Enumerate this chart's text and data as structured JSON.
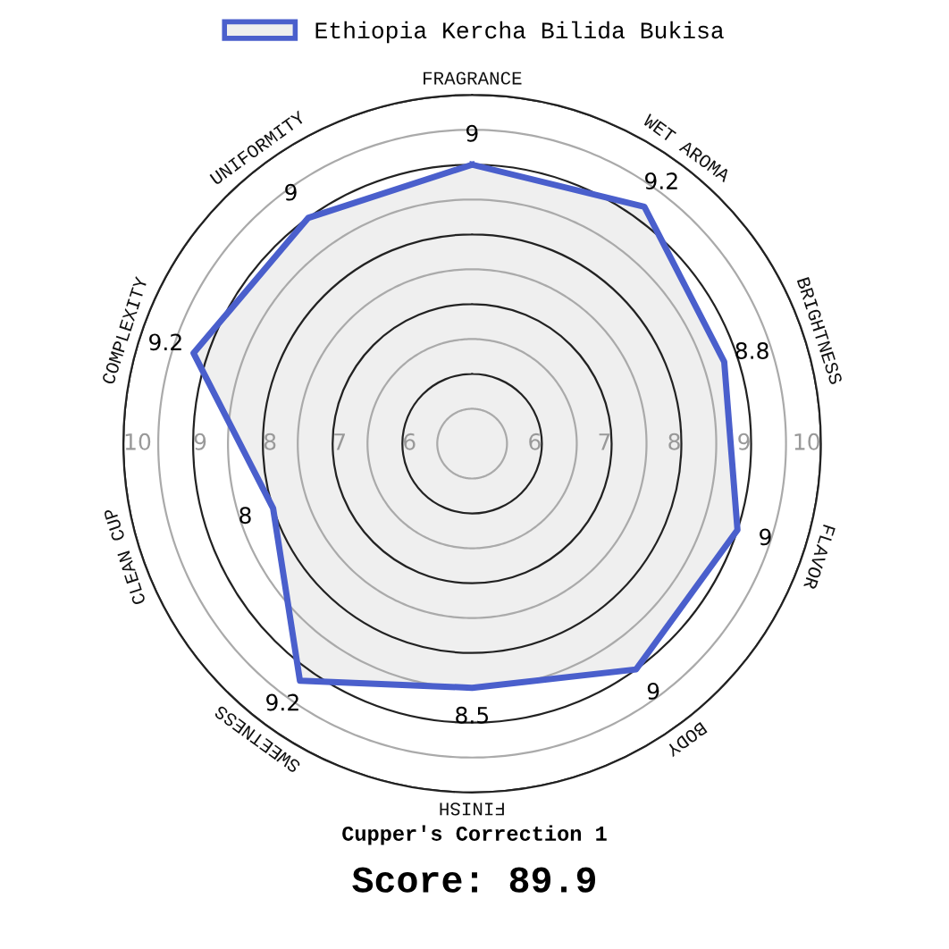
{
  "chart_data": {
    "type": "radar",
    "categories": [
      "FRAGRANCE",
      "WET AROMA",
      "BRIGHTNESS",
      "FLAVOR",
      "BODY",
      "FINISH",
      "SWEETNESS",
      "CLEAN CUP",
      "COMPLEXITY",
      "UNIFORMITY"
    ],
    "series": [
      {
        "name": "Ethiopia Kercha Bilida Bukisa",
        "color": "#4a5fcc",
        "values": [
          9,
          9.2,
          8.8,
          9,
          9,
          8.5,
          9.2,
          8,
          9.2,
          9
        ]
      }
    ],
    "ylim": [
      5,
      10
    ],
    "yticks": [
      {
        "value": 6,
        "label": "6"
      },
      {
        "value": 7,
        "label": "7"
      },
      {
        "value": 8,
        "label": "8"
      },
      {
        "value": 9,
        "label": "9"
      },
      {
        "value": 10,
        "label": "10"
      }
    ],
    "grid": "y",
    "legend": "top",
    "data_labels": true,
    "marker": "none",
    "line_style": "solid",
    "annotations": [
      "Cupper's Correction 1",
      "Score: 89.9"
    ]
  }
}
